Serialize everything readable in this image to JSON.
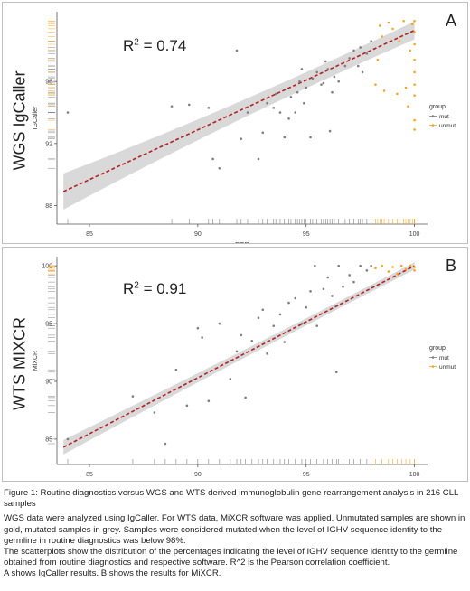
{
  "panels": [
    {
      "side_label": "WGS IgCaller",
      "letter": "A",
      "r2_prefix": "R",
      "r2_sup": "2",
      "r2_rest": " = 0.74"
    },
    {
      "side_label": "WTS MIXCR",
      "letter": "B",
      "r2_prefix": "R",
      "r2_sup": "2",
      "r2_rest": " = 0.91"
    }
  ],
  "caption": {
    "title": "Figure 1: Routine diagnostics versus WGS and WTS derived immunoglobulin gene rearrangement analysis in 216 CLL samples",
    "p1": "WGS data were analyzed using IgCaller. For WTS data, MiXCR software was applied. Unmutated samples are shown in gold, mutated samples in grey. Samples were considered mutated when the level of IGHV sequence identity to the germline in routine diagnostics was below 98%.",
    "p2": "The scatterplots show the distribution of the percentages indicating the level of IGHV sequence identity to the germline obtained from routine diagnostics and respective software. R^2 is the Pearson correlation coefficient.",
    "p3": "A shows IgCaller results. B shows the results for MiXCR."
  },
  "colors": {
    "mut": "#7f7f7f",
    "unmut": "#f5a623",
    "fit": "#b22222",
    "band": "#d9d9d9"
  },
  "chart_data": [
    {
      "type": "scatter",
      "xlabel": "PCR",
      "ylabel": "IGCaller",
      "x_ticks": [
        85,
        90,
        95,
        100
      ],
      "y_ticks": [
        88,
        92,
        96
      ],
      "xlim": [
        83.5,
        100.6
      ],
      "ylim": [
        86.8,
        100.5
      ],
      "legend": {
        "title": "group",
        "entries": [
          "mut",
          "unmut"
        ],
        "position": "right"
      },
      "fit": {
        "x": [
          83.8,
          100
        ],
        "y": [
          88.9,
          99.3
        ]
      },
      "series": [
        {
          "name": "mut",
          "points": [
            [
              84.0,
              94.0
            ],
            [
              88.8,
              94.4
            ],
            [
              89.6,
              94.5
            ],
            [
              90.5,
              94.3
            ],
            [
              90.7,
              91.0
            ],
            [
              91.0,
              90.4
            ],
            [
              91.8,
              98.0
            ],
            [
              92.0,
              92.3
            ],
            [
              92.3,
              94.0
            ],
            [
              92.8,
              91.0
            ],
            [
              93.0,
              92.7
            ],
            [
              93.2,
              94.6
            ],
            [
              93.5,
              94.3
            ],
            [
              93.6,
              95.2
            ],
            [
              93.8,
              94.0
            ],
            [
              94.0,
              92.4
            ],
            [
              94.2,
              93.6
            ],
            [
              94.3,
              95.0
            ],
            [
              94.5,
              94.0
            ],
            [
              94.6,
              95.3
            ],
            [
              94.7,
              96.0
            ],
            [
              94.8,
              96.8
            ],
            [
              94.9,
              94.6
            ],
            [
              95.0,
              95.6
            ],
            [
              95.2,
              92.4
            ],
            [
              95.3,
              96.2
            ],
            [
              95.5,
              96.6
            ],
            [
              95.7,
              95.8
            ],
            [
              95.8,
              95.9
            ],
            [
              95.9,
              97.3
            ],
            [
              96.0,
              96.8
            ],
            [
              96.1,
              92.8
            ],
            [
              96.2,
              95.3
            ],
            [
              96.3,
              96.3
            ],
            [
              96.5,
              96.0
            ],
            [
              96.8,
              97.0
            ],
            [
              97.0,
              97.5
            ],
            [
              97.2,
              98.0
            ],
            [
              97.4,
              97.0
            ],
            [
              97.5,
              98.2
            ],
            [
              97.6,
              96.6
            ],
            [
              97.8,
              97.8
            ],
            [
              98.0,
              98.6
            ]
          ]
        },
        {
          "name": "unmut",
          "points": [
            [
              98.2,
              95.8
            ],
            [
              98.3,
              97.4
            ],
            [
              98.4,
              99.6
            ],
            [
              98.5,
              98.9
            ],
            [
              98.6,
              95.4
            ],
            [
              98.8,
              99.8
            ],
            [
              99.0,
              99.4
            ],
            [
              99.2,
              95.2
            ],
            [
              99.3,
              98.6
            ],
            [
              99.5,
              99.9
            ],
            [
              99.6,
              95.6
            ],
            [
              99.7,
              94.4
            ],
            [
              99.8,
              98.0
            ],
            [
              99.9,
              99.7
            ],
            [
              100.0,
              99.2
            ],
            [
              100.0,
              98.4
            ],
            [
              100.0,
              97.4
            ],
            [
              100.0,
              96.6
            ],
            [
              100.0,
              95.8
            ],
            [
              100.0,
              95.1
            ],
            [
              100.0,
              93.5
            ],
            [
              100.0,
              92.9
            ],
            [
              100.0,
              99.9
            ]
          ]
        }
      ]
    },
    {
      "type": "scatter",
      "xlabel": "PCR",
      "ylabel": "MiXCR",
      "x_ticks": [
        85,
        90,
        95,
        100
      ],
      "y_ticks": [
        85,
        90,
        95,
        100
      ],
      "xlim": [
        83.5,
        100.6
      ],
      "ylim": [
        82.8,
        100.8
      ],
      "legend": {
        "title": "group",
        "entries": [
          "mut",
          "unmut"
        ],
        "position": "right"
      },
      "fit": {
        "x": [
          83.8,
          100
        ],
        "y": [
          84.3,
          100
        ]
      },
      "series": [
        {
          "name": "mut",
          "points": [
            [
              84.0,
              85.0
            ],
            [
              87.0,
              88.7
            ],
            [
              88.0,
              87.3
            ],
            [
              88.5,
              84.6
            ],
            [
              89.0,
              91.0
            ],
            [
              89.5,
              87.9
            ],
            [
              90.0,
              94.6
            ],
            [
              90.2,
              93.8
            ],
            [
              90.5,
              88.3
            ],
            [
              91.0,
              95.0
            ],
            [
              91.5,
              90.2
            ],
            [
              91.8,
              92.6
            ],
            [
              92.0,
              94.0
            ],
            [
              92.2,
              88.6
            ],
            [
              92.5,
              93.5
            ],
            [
              92.8,
              95.5
            ],
            [
              93.0,
              96.2
            ],
            [
              93.2,
              92.4
            ],
            [
              93.5,
              94.8
            ],
            [
              93.8,
              95.8
            ],
            [
              94.0,
              93.4
            ],
            [
              94.2,
              96.8
            ],
            [
              94.5,
              97.2
            ],
            [
              94.8,
              95.0
            ],
            [
              95.0,
              96.4
            ],
            [
              95.2,
              97.8
            ],
            [
              95.4,
              100.0
            ],
            [
              95.5,
              94.8
            ],
            [
              95.8,
              98.0
            ],
            [
              96.0,
              99.0
            ],
            [
              96.2,
              97.4
            ],
            [
              96.4,
              90.8
            ],
            [
              96.5,
              100.0
            ],
            [
              96.7,
              98.2
            ],
            [
              97.0,
              99.2
            ],
            [
              97.2,
              98.6
            ],
            [
              97.5,
              100.0
            ],
            [
              97.8,
              99.6
            ],
            [
              98.0,
              100.0
            ]
          ]
        },
        {
          "name": "unmut",
          "points": [
            [
              98.2,
              99.8
            ],
            [
              98.5,
              100.0
            ],
            [
              98.8,
              99.5
            ],
            [
              99.0,
              99.9
            ],
            [
              99.2,
              99.3
            ],
            [
              99.4,
              100.0
            ],
            [
              99.6,
              99.7
            ],
            [
              99.8,
              100.0
            ],
            [
              100.0,
              99.9
            ],
            [
              100.0,
              99.6
            ]
          ]
        }
      ]
    }
  ]
}
